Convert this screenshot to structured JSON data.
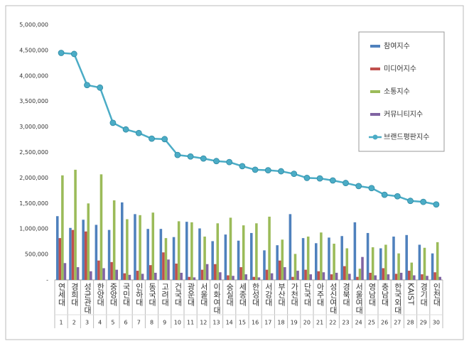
{
  "chart_data": {
    "type": "bar",
    "categories": [
      "연세대",
      "경희대",
      "성균관대",
      "한양대",
      "중앙대",
      "국민대",
      "인하대",
      "동국대",
      "고려대",
      "건국대",
      "광운대",
      "서울대",
      "이화여대",
      "숭실대",
      "세종대",
      "한성대",
      "서강대",
      "부산대",
      "가천대",
      "단국대",
      "아주대",
      "성신여대",
      "경북대",
      "서울여대",
      "영남대",
      "충남대",
      "한국외대",
      "KAIST",
      "경기대",
      "인천대"
    ],
    "category_numbers": [
      1,
      2,
      3,
      4,
      5,
      6,
      7,
      8,
      9,
      10,
      11,
      12,
      13,
      14,
      15,
      16,
      17,
      18,
      19,
      20,
      21,
      22,
      23,
      24,
      25,
      26,
      27,
      28,
      29,
      30
    ],
    "ylim": [
      0,
      5000000
    ],
    "yticks": [
      {
        "value": 0,
        "label": "-"
      },
      {
        "value": 500000,
        "label": "500,000"
      },
      {
        "value": 1000000,
        "label": "1,000,000"
      },
      {
        "value": 1500000,
        "label": "1,500,000"
      },
      {
        "value": 2000000,
        "label": "2,000,000"
      },
      {
        "value": 2500000,
        "label": "2,500,000"
      },
      {
        "value": 3000000,
        "label": "3,000,000"
      },
      {
        "value": 3500000,
        "label": "3,500,000"
      },
      {
        "value": 4000000,
        "label": "4,000,000"
      },
      {
        "value": 4500000,
        "label": "4,500,000"
      },
      {
        "value": 5000000,
        "label": "5,000,000"
      }
    ],
    "grid": false,
    "legend": "top-right",
    "series": [
      {
        "name": "참여지수",
        "type": "bar",
        "color": "#4f81bd",
        "values": [
          1250000,
          1020000,
          1180000,
          1080000,
          980000,
          1520000,
          1290000,
          1000000,
          1000000,
          840000,
          1140000,
          1010000,
          760000,
          890000,
          770000,
          920000,
          580000,
          680000,
          1290000,
          820000,
          720000,
          830000,
          860000,
          1130000,
          920000,
          620000,
          850000,
          880000,
          690000,
          520000
        ]
      },
      {
        "name": "미디어지수",
        "type": "bar",
        "color": "#c0504d",
        "values": [
          820000,
          980000,
          950000,
          380000,
          350000,
          130000,
          180000,
          290000,
          540000,
          320000,
          60000,
          200000,
          310000,
          90000,
          250000,
          60000,
          200000,
          380000,
          60000,
          200000,
          170000,
          110000,
          270000,
          60000,
          140000,
          230000,
          120000,
          180000,
          110000,
          150000
        ]
      },
      {
        "name": "소통지수",
        "type": "bar",
        "color": "#9bbb59",
        "values": [
          2050000,
          2160000,
          1500000,
          2070000,
          1560000,
          1190000,
          1270000,
          1320000,
          820000,
          1150000,
          1130000,
          850000,
          1110000,
          1220000,
          1070000,
          1110000,
          1240000,
          790000,
          510000,
          850000,
          930000,
          710000,
          620000,
          220000,
          640000,
          690000,
          520000,
          340000,
          630000,
          740000
        ]
      },
      {
        "name": "커뮤니티지수",
        "type": "bar",
        "color": "#8064a2",
        "values": [
          330000,
          250000,
          170000,
          230000,
          200000,
          100000,
          120000,
          140000,
          400000,
          140000,
          50000,
          310000,
          150000,
          80000,
          110000,
          50000,
          130000,
          250000,
          180000,
          110000,
          150000,
          140000,
          120000,
          450000,
          90000,
          110000,
          140000,
          90000,
          80000,
          60000
        ]
      },
      {
        "name": "브랜드평판지수",
        "type": "line",
        "color": "#4bacc6",
        "values": [
          4450000,
          4430000,
          3820000,
          3770000,
          3080000,
          2950000,
          2880000,
          2770000,
          2760000,
          2450000,
          2420000,
          2380000,
          2330000,
          2310000,
          2230000,
          2160000,
          2150000,
          2130000,
          2080000,
          2000000,
          1990000,
          1950000,
          1900000,
          1840000,
          1800000,
          1670000,
          1640000,
          1550000,
          1530000,
          1480000
        ]
      }
    ]
  }
}
